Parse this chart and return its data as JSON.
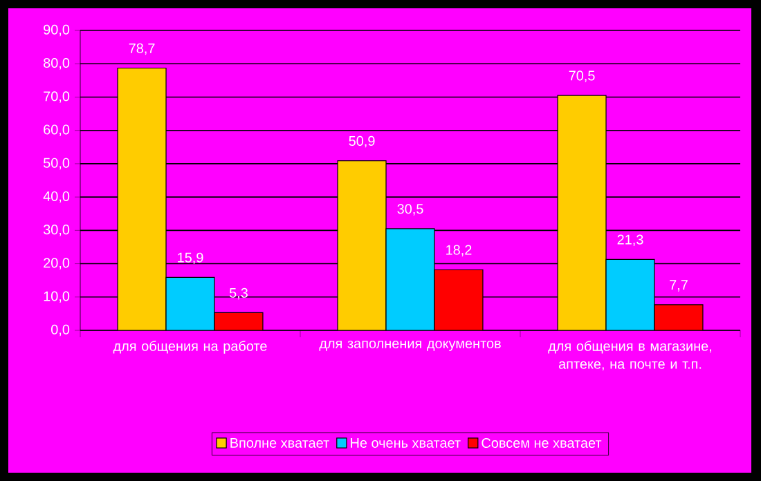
{
  "chart_data": {
    "type": "bar",
    "categories": [
      "для общения на работе",
      "для заполнения документов",
      "для общения в магазине, аптеке, на почте и т.п."
    ],
    "series": [
      {
        "name": "Вполне хватает",
        "color": "#ffcc00",
        "values": [
          78.7,
          50.9,
          70.5
        ],
        "value_labels": [
          "78,7",
          "50,9",
          "70,5"
        ]
      },
      {
        "name": "Не очень хватает",
        "color": "#00ccff",
        "values": [
          15.9,
          30.5,
          21.3
        ],
        "value_labels": [
          "15,9",
          "30,5",
          "21,3"
        ]
      },
      {
        "name": "Совсем не хватает",
        "color": "#ff0000",
        "values": [
          5.3,
          18.2,
          7.7
        ],
        "value_labels": [
          "5,3",
          "18,2",
          "7,7"
        ]
      }
    ],
    "ylim": [
      0,
      90
    ],
    "yticks": [
      {
        "value": 0,
        "label": "0,0"
      },
      {
        "value": 10,
        "label": "10,0"
      },
      {
        "value": 20,
        "label": "20,0"
      },
      {
        "value": 30,
        "label": "30,0"
      },
      {
        "value": 40,
        "label": "40,0"
      },
      {
        "value": 50,
        "label": "50,0"
      },
      {
        "value": 60,
        "label": "60,0"
      },
      {
        "value": 70,
        "label": "70,0"
      },
      {
        "value": 80,
        "label": "80,0"
      },
      {
        "value": 90,
        "label": "90,0"
      }
    ],
    "grid": "y",
    "legend": "bottom"
  }
}
